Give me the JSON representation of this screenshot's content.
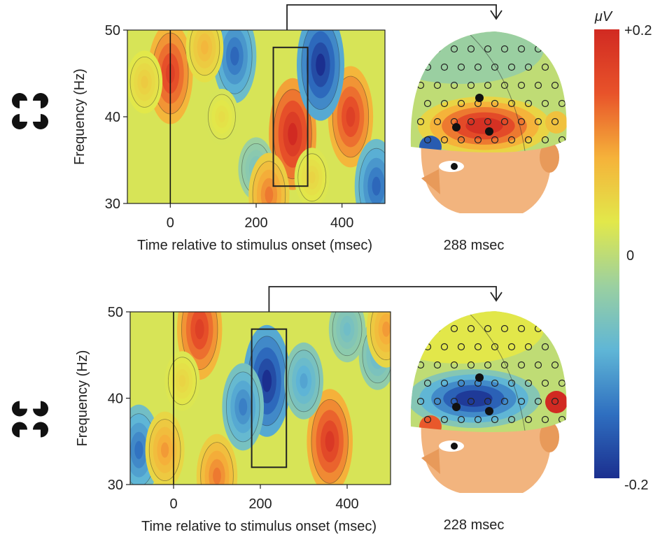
{
  "colors": {
    "scale": [
      "#1b2f8f",
      "#2f6fc0",
      "#5fb6d6",
      "#9bd0a0",
      "#e2e84a",
      "#f5b23a",
      "#e8532a",
      "#d12a22"
    ],
    "head_skin": "#f2b47e",
    "nose": "#e89a5a",
    "box": "#222222"
  },
  "colorbar": {
    "unit": "μV",
    "max_label": "+0.2",
    "mid_label": "0",
    "min_label": "-0.2",
    "range": [
      -0.2,
      0.2
    ]
  },
  "chart_data": [
    {
      "type": "heatmap",
      "stimulus": "illusory-square (inducers facing inward)",
      "xlabel": "Time relative to stimulus onset (msec)",
      "ylabel": "Frequency (Hz)",
      "xlim": [
        -100,
        500
      ],
      "ylim": [
        30,
        50
      ],
      "x_ticks": [
        0,
        200,
        400
      ],
      "y_ticks": [
        30,
        40,
        50
      ],
      "onset_line_x": 0,
      "highlight_window": {
        "t_start": 240,
        "t_end": 320,
        "f_start": 32,
        "f_end": 48
      },
      "topography_time": "288 msec",
      "topography_sign": "positive",
      "blobs": [
        {
          "t": 0,
          "f": 45,
          "value": 0.17
        },
        {
          "t": 285,
          "f": 38,
          "value": 0.2
        },
        {
          "t": 420,
          "f": 40,
          "value": 0.17
        },
        {
          "t": 150,
          "f": 47,
          "value": -0.15
        },
        {
          "t": 350,
          "f": 46,
          "value": -0.2
        },
        {
          "t": 480,
          "f": 32,
          "value": -0.15
        },
        {
          "t": 80,
          "f": 48,
          "value": 0.08
        },
        {
          "t": 200,
          "f": 34,
          "value": -0.06
        },
        {
          "t": -60,
          "f": 44,
          "value": 0.06
        },
        {
          "t": 230,
          "f": 31,
          "value": 0.12
        },
        {
          "t": 330,
          "f": 33,
          "value": 0.05
        },
        {
          "t": 120,
          "f": 40,
          "value": 0.04
        }
      ]
    },
    {
      "type": "heatmap",
      "stimulus": "no-illusion control (inducers rotated)",
      "xlabel": "Time relative to stimulus onset (msec)",
      "ylabel": "Frequency (Hz)",
      "xlim": [
        -100,
        500
      ],
      "ylim": [
        30,
        50
      ],
      "x_ticks": [
        0,
        200,
        400
      ],
      "y_ticks": [
        30,
        40,
        50
      ],
      "onset_line_x": 0,
      "highlight_window": {
        "t_start": 180,
        "t_end": 260,
        "f_start": 32,
        "f_end": 48
      },
      "topography_time": "228 msec",
      "topography_sign": "negative",
      "blobs": [
        {
          "t": 60,
          "f": 48,
          "value": 0.17
        },
        {
          "t": 215,
          "f": 42,
          "value": -0.2
        },
        {
          "t": 160,
          "f": 39,
          "value": -0.13
        },
        {
          "t": 360,
          "f": 35,
          "value": 0.18
        },
        {
          "t": 300,
          "f": 42,
          "value": -0.1
        },
        {
          "t": 470,
          "f": 45,
          "value": -0.08
        },
        {
          "t": -80,
          "f": 34,
          "value": -0.14
        },
        {
          "t": -20,
          "f": 34,
          "value": 0.1
        },
        {
          "t": 100,
          "f": 31,
          "value": 0.12
        },
        {
          "t": 400,
          "f": 48,
          "value": -0.07
        },
        {
          "t": 490,
          "f": 48,
          "value": 0.1
        },
        {
          "t": 20,
          "f": 42,
          "value": 0.05
        }
      ]
    }
  ]
}
